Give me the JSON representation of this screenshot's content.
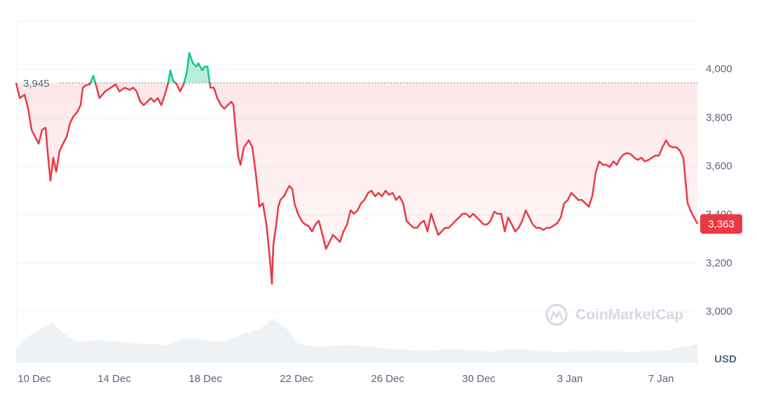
{
  "chart_data": {
    "type": "line",
    "series": [
      {
        "color": "#ea3943",
        "up_color": "#16c784",
        "x": [
          -0.31,
          -0.15,
          0.06,
          0.22,
          0.37,
          0.52,
          0.68,
          0.83,
          0.98,
          1.14,
          1.2,
          1.32,
          1.45,
          1.6,
          1.75,
          1.91,
          2.06,
          2.22,
          2.37,
          2.52,
          2.62,
          2.74,
          2.92,
          3.08,
          3.23,
          3.35,
          3.6,
          3.85,
          4.06,
          4.22,
          4.46,
          4.68,
          4.83,
          4.98,
          5.14,
          5.29,
          5.45,
          5.6,
          5.75,
          5.91,
          6.06,
          6.22,
          6.37,
          6.46,
          6.58,
          6.74,
          6.89,
          7.05,
          7.2,
          7.29,
          7.45,
          7.6,
          7.69,
          7.85,
          7.97,
          8.09,
          8.22,
          8.37,
          8.52,
          8.68,
          8.83,
          8.98,
          9.14,
          9.23,
          9.35,
          9.45,
          9.54,
          9.69,
          9.91,
          10.06,
          10.22,
          10.37,
          10.52,
          10.68,
          10.77,
          10.86,
          10.92,
          10.98,
          11.11,
          11.2,
          11.29,
          11.45,
          11.6,
          11.69,
          11.82,
          11.91,
          12.06,
          12.22,
          12.37,
          12.52,
          12.68,
          12.83,
          12.98,
          13.14,
          13.29,
          13.45,
          13.6,
          13.75,
          13.91,
          14.06,
          14.22,
          14.37,
          14.52,
          14.68,
          14.83,
          14.98,
          15.14,
          15.29,
          15.45,
          15.6,
          15.75,
          15.91,
          16.06,
          16.22,
          16.37,
          16.52,
          16.68,
          16.83,
          16.98,
          17.14,
          17.29,
          17.45,
          17.6,
          17.75,
          17.91,
          18.06,
          18.22,
          18.37,
          18.52,
          18.68,
          18.83,
          18.98,
          19.14,
          19.29,
          19.45,
          19.6,
          19.75,
          19.91,
          20.06,
          20.22,
          20.37,
          20.52,
          20.68,
          20.83,
          20.98,
          21.14,
          21.29,
          21.45,
          21.6,
          21.75,
          21.91,
          22.06,
          22.22,
          22.37,
          22.52,
          22.68,
          22.83,
          22.98,
          23.14,
          23.29,
          23.45,
          23.6,
          23.75,
          23.91,
          24.06,
          24.22,
          24.37,
          24.52,
          24.68,
          24.83,
          24.98,
          25.14,
          25.29,
          25.45,
          25.6,
          25.75,
          25.91,
          26.06,
          26.22,
          26.37,
          26.52,
          26.68,
          26.83,
          26.98,
          27.14,
          27.29,
          27.45,
          27.6,
          27.75,
          27.91,
          28.06,
          28.22,
          28.37,
          28.52,
          28.68,
          28.83,
          28.98,
          29.08,
          29.17,
          29.29,
          29.45,
          29.6
        ],
        "values": [
          3945,
          3882,
          3896,
          3838,
          3751,
          3723,
          3694,
          3751,
          3760,
          3593,
          3541,
          3636,
          3578,
          3665,
          3694,
          3723,
          3780,
          3809,
          3824,
          3853,
          3925,
          3934,
          3939,
          3974,
          3925,
          3882,
          3910,
          3925,
          3939,
          3910,
          3925,
          3916,
          3925,
          3910,
          3867,
          3853,
          3867,
          3882,
          3867,
          3882,
          3853,
          3896,
          3945,
          3997,
          3954,
          3939,
          3910,
          3939,
          3997,
          4069,
          4026,
          4012,
          4026,
          3997,
          4012,
          4012,
          3925,
          3925,
          3882,
          3853,
          3838,
          3853,
          3867,
          3853,
          3723,
          3636,
          3607,
          3679,
          3708,
          3679,
          3564,
          3434,
          3448,
          3361,
          3275,
          3188,
          3116,
          3275,
          3361,
          3434,
          3462,
          3477,
          3506,
          3520,
          3506,
          3448,
          3405,
          3376,
          3361,
          3356,
          3332,
          3361,
          3376,
          3318,
          3260,
          3289,
          3318,
          3304,
          3289,
          3332,
          3361,
          3419,
          3405,
          3419,
          3448,
          3462,
          3491,
          3500,
          3477,
          3491,
          3477,
          3500,
          3483,
          3491,
          3462,
          3477,
          3448,
          3376,
          3361,
          3347,
          3347,
          3367,
          3376,
          3332,
          3405,
          3361,
          3318,
          3332,
          3347,
          3347,
          3361,
          3376,
          3390,
          3405,
          3405,
          3390,
          3405,
          3390,
          3376,
          3361,
          3361,
          3376,
          3413,
          3405,
          3405,
          3332,
          3390,
          3361,
          3332,
          3347,
          3376,
          3419,
          3390,
          3361,
          3347,
          3347,
          3338,
          3347,
          3347,
          3356,
          3367,
          3390,
          3448,
          3462,
          3491,
          3477,
          3462,
          3462,
          3448,
          3434,
          3477,
          3578,
          3621,
          3607,
          3607,
          3598,
          3621,
          3607,
          3636,
          3650,
          3656,
          3650,
          3636,
          3627,
          3636,
          3621,
          3627,
          3636,
          3645,
          3645,
          3679,
          3708,
          3685,
          3679,
          3679,
          3665,
          3636,
          3535,
          3448,
          3419,
          3390,
          3363
        ]
      }
    ],
    "volume": {
      "color": "#eff2f5",
      "x": [
        -0.31,
        0.22,
        0.83,
        1.29,
        1.75,
        2.37,
        3.28,
        4.2,
        5.12,
        6.34,
        7.11,
        7.88,
        8.8,
        9.75,
        10.35,
        10.98,
        11.6,
        12.06,
        12.83,
        14.37,
        15.91,
        17.45,
        18.98,
        20.52,
        21.45,
        22.37,
        23.6,
        25.14,
        26.68,
        28.22,
        29.6
      ],
      "values": [
        23,
        38,
        50,
        58,
        43,
        30,
        33,
        30,
        28,
        26,
        36,
        33,
        30,
        43,
        48,
        63,
        48,
        28,
        23,
        26,
        21,
        18,
        20,
        16,
        21,
        18,
        16,
        18,
        16,
        18,
        28
      ]
    },
    "reference": {
      "value": 3945,
      "label": "3,945"
    },
    "last_price": {
      "value": 3363,
      "label": "3,363"
    },
    "y_unit": "USD",
    "watermark": "CoinMarketCap",
    "xlim": [
      -0.31,
      29.66
    ],
    "xticks": [
      {
        "value": 0,
        "label": "10 Dec"
      },
      {
        "value": 4,
        "label": "14 Dec"
      },
      {
        "value": 8,
        "label": "18 Dec"
      },
      {
        "value": 12,
        "label": "22 Dec"
      },
      {
        "value": 16,
        "label": "26 Dec"
      },
      {
        "value": 20,
        "label": "30 Dec"
      },
      {
        "value": 24,
        "label": "3 Jan"
      },
      {
        "value": 28,
        "label": "7 Jan"
      }
    ],
    "ylim": [
      3000,
      4200
    ],
    "yticks": [
      {
        "value": 3000,
        "label": "3,000"
      },
      {
        "value": 3200,
        "label": "3,200"
      },
      {
        "value": 3400,
        "label": "3,400"
      },
      {
        "value": 3600,
        "label": "3,600"
      },
      {
        "value": 3800,
        "label": "3,800"
      },
      {
        "value": 4000,
        "label": "4,000"
      }
    ],
    "grid": true
  }
}
